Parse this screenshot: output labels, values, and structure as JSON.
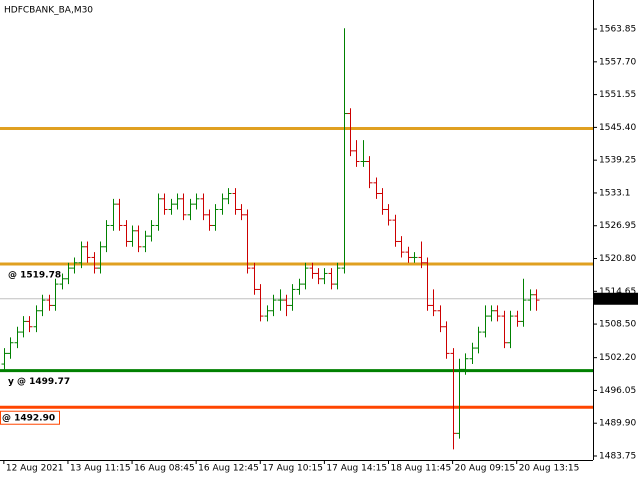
{
  "chart_data": {
    "type": "ohlc",
    "title": "HDFCBANK_BA,M30",
    "up_color": "#008000",
    "down_color": "#cc0000",
    "ylim": [
      1483.0,
      1569.3
    ],
    "xlim": [
      -0.6,
      91.9
    ],
    "yticks": [
      1563.85,
      {
        "value": 1557.7,
        "label": "1557.70"
      },
      1551.55,
      {
        "value": 1545.4,
        "label": "1545.40"
      },
      1539.25,
      1533.1,
      1526.95,
      {
        "value": 1520.8,
        "label": "1520.80"
      },
      1514.65,
      {
        "value": 1508.5,
        "label": "1508.50"
      },
      {
        "value": 1502.2,
        "label": "1502.20"
      },
      1496.05,
      {
        "value": 1489.9,
        "label": "1489.90"
      },
      1483.75
    ],
    "xticks": [
      {
        "value": 0,
        "label": "12 Aug 2021"
      },
      {
        "value": 10,
        "label": "13 Aug 11:15"
      },
      {
        "value": 20,
        "label": "16 Aug 08:45"
      },
      {
        "value": 30,
        "label": "16 Aug 12:45"
      },
      {
        "value": 40,
        "label": "17 Aug 10:15"
      },
      {
        "value": 50,
        "label": "17 Aug 14:15"
      },
      {
        "value": 60,
        "label": "18 Aug 11:45"
      },
      {
        "value": 70,
        "label": "20 Aug 09:15"
      },
      {
        "value": 80,
        "label": "20 Aug 13:15"
      }
    ],
    "open": [
      1501,
      1503,
      1505,
      1507,
      1509,
      1508,
      1511,
      1513,
      1512,
      1516,
      1517,
      1519,
      1520,
      1523,
      1521,
      1519,
      1523,
      1527,
      1531,
      1527,
      1524,
      1526,
      1523,
      1525,
      1527,
      1532,
      1530,
      1531,
      1532,
      1529,
      1531,
      1532,
      1529,
      1527,
      1530,
      1532,
      1533,
      1530,
      1529,
      1519,
      1515,
      1510,
      1511,
      1513,
      1513,
      1512,
      1515,
      1516,
      1519,
      1518,
      1517,
      1518,
      1516,
      1519,
      1548,
      1541,
      1539,
      1539,
      1535,
      1533,
      1530,
      1528,
      1524,
      1522,
      1521,
      1521,
      1520,
      1512,
      1511,
      1508,
      1503,
      1488,
      1500,
      1502,
      1504,
      1507,
      1510,
      1511,
      1510,
      1505,
      1510,
      1509,
      1513,
      1514
    ],
    "high": [
      1504,
      1506,
      1508,
      1510,
      1510,
      1512,
      1514,
      1514,
      1517,
      1518,
      1520,
      1521,
      1524,
      1524,
      1522,
      1524,
      1528,
      1532,
      1532,
      1528,
      1527,
      1527,
      1526,
      1528,
      1533,
      1533,
      1532,
      1533,
      1533,
      1532,
      1533,
      1533,
      1530,
      1531,
      1533,
      1534,
      1534,
      1531,
      1530,
      1520,
      1516,
      1512,
      1514,
      1515,
      1514,
      1516,
      1517,
      1520,
      1520,
      1519,
      1519,
      1519,
      1520,
      1564,
      1549,
      1543,
      1543,
      1540,
      1536,
      1534,
      1531,
      1529,
      1525,
      1523,
      1522,
      1524,
      1521,
      1515,
      1512,
      1509,
      1504,
      1502,
      1503,
      1505,
      1508,
      1512,
      1512,
      1512,
      1511,
      1511,
      1511,
      1517,
      1515,
      1515
    ],
    "low": [
      1500,
      1502,
      1504,
      1506,
      1507,
      1507,
      1510,
      1511,
      1511,
      1515,
      1516,
      1518,
      1519,
      1520,
      1518,
      1518,
      1522,
      1526,
      1526,
      1523,
      1523,
      1522,
      1522,
      1524,
      1526,
      1529,
      1529,
      1530,
      1528,
      1528,
      1530,
      1528,
      1526,
      1526,
      1529,
      1531,
      1529,
      1528,
      1518,
      1514,
      1509,
      1509,
      1510,
      1511,
      1510,
      1511,
      1514,
      1515,
      1517,
      1516,
      1516,
      1515,
      1515,
      1518,
      1540,
      1538,
      1538,
      1534,
      1532,
      1529,
      1527,
      1523,
      1521,
      1520,
      1520,
      1519,
      1511,
      1510,
      1507,
      1502,
      1485,
      1487,
      1499,
      1501,
      1503,
      1506,
      1509,
      1509,
      1504,
      1504,
      1508,
      1508,
      1511,
      1511
    ],
    "close": [
      1503,
      1505,
      1507,
      1509,
      1508,
      1511,
      1513,
      1512,
      1516,
      1517,
      1519,
      1520,
      1523,
      1521,
      1519,
      1523,
      1527,
      1531,
      1527,
      1524,
      1526,
      1523,
      1525,
      1527,
      1532,
      1530,
      1531,
      1532,
      1529,
      1531,
      1532,
      1529,
      1527,
      1530,
      1532,
      1533,
      1530,
      1529,
      1519,
      1515,
      1510,
      1511,
      1513,
      1513,
      1512,
      1515,
      1516,
      1519,
      1518,
      1517,
      1518,
      1516,
      1519,
      1548,
      1541,
      1539,
      1539,
      1535,
      1533,
      1530,
      1528,
      1524,
      1522,
      1521,
      1521,
      1520,
      1512,
      1511,
      1508,
      1503,
      1488,
      1500,
      1502,
      1504,
      1507,
      1510,
      1511,
      1510,
      1505,
      1510,
      1509,
      1513,
      1514,
      1513
    ],
    "levels": [
      {
        "value": 1545.2,
        "color": "#e0a020"
      },
      {
        "value": 1519.78,
        "color": "#e0a020",
        "label": "@ 1519.78",
        "label_color": "#ffff00"
      },
      {
        "value": 1499.77,
        "color": "#008000",
        "label": "y @ 1499.77",
        "label_color": "#008000"
      },
      {
        "value": 1492.9,
        "color": "#ff4500",
        "label": "@ 1492.90",
        "label_color": "#ff4500"
      }
    ],
    "current_price": 1513.25,
    "current_color": "#c0c0c0"
  }
}
